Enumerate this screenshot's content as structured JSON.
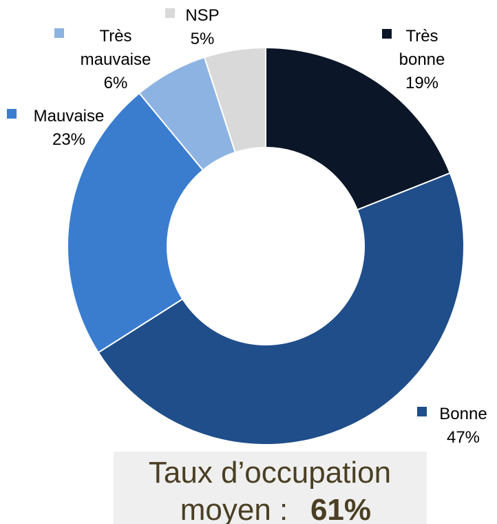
{
  "chart_data": {
    "type": "donut",
    "categories": [
      "Très bonne",
      "Bonne",
      "Mauvaise",
      "Très mauvaise",
      "NSP"
    ],
    "values": [
      19,
      47,
      23,
      6,
      5
    ],
    "value_labels": [
      "19%",
      "47%",
      "23%",
      "6%",
      "5%"
    ],
    "colors": [
      "#0b1628",
      "#1f4e8a",
      "#3a7dcf",
      "#8db3e2",
      "#d9d9d9"
    ],
    "annotation": "Taux d’occupation moyen :",
    "annotation_value": "61%"
  }
}
